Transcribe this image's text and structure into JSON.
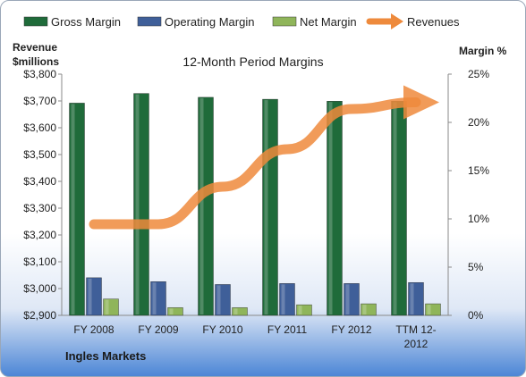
{
  "chart_data": {
    "type": "bar",
    "title": "12-Month Period Margins",
    "company": "Ingles Markets",
    "categories": [
      "FY 2008",
      "FY 2009",
      "FY 2010",
      "FY 2011",
      "FY 2012",
      "TTM 12-2012"
    ],
    "series": [
      {
        "name": "Gross Margin",
        "axis": "right",
        "values": [
          22.0,
          23.0,
          22.6,
          22.4,
          22.2,
          22.2
        ],
        "color": "#1f6b3a"
      },
      {
        "name": "Operating Margin",
        "axis": "right",
        "values": [
          3.9,
          3.5,
          3.2,
          3.3,
          3.3,
          3.4
        ],
        "color": "#3f5f99"
      },
      {
        "name": "Net Margin",
        "axis": "right",
        "values": [
          1.7,
          0.8,
          0.8,
          1.1,
          1.2,
          1.2
        ],
        "color": "#8fb55a"
      }
    ],
    "line_series": {
      "name": "Revenues",
      "axis": "left",
      "values": [
        3240,
        3240,
        3380,
        3520,
        3670,
        3695
      ],
      "color": "#ee8a3c"
    },
    "left_axis": {
      "label_line1": "Revenue",
      "label_line2": "$millions",
      "ylim": [
        2900,
        3800
      ],
      "ticks": [
        2900,
        3000,
        3100,
        3200,
        3300,
        3400,
        3500,
        3600,
        3700,
        3800
      ],
      "tick_labels": [
        "$2,900",
        "$3,000",
        "$3,100",
        "$3,200",
        "$3,300",
        "$3,400",
        "$3,500",
        "$3,600",
        "$3,700",
        "$3,800"
      ]
    },
    "right_axis": {
      "label": "Margin %",
      "ylim": [
        0,
        25
      ],
      "ticks": [
        0,
        5,
        10,
        15,
        20,
        25
      ],
      "tick_labels": [
        "0%",
        "5%",
        "10%",
        "15%",
        "20%",
        "25%"
      ]
    },
    "category_labels": [
      [
        "FY 2008"
      ],
      [
        "FY 2009"
      ],
      [
        "FY 2010"
      ],
      [
        "FY 2011"
      ],
      [
        "FY 2012"
      ],
      [
        "TTM 12-",
        "2012"
      ]
    ],
    "grid": false,
    "legend_position": "top"
  }
}
